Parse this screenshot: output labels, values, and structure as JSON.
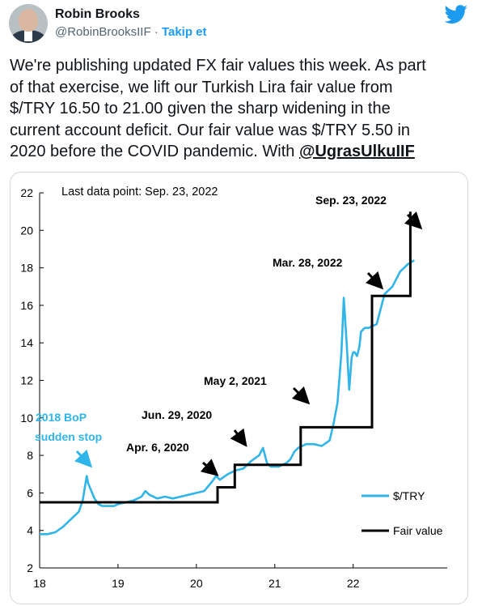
{
  "author": {
    "name": "Robin Brooks",
    "handle": "@RobinBrooksIIF",
    "separator": "·",
    "follow_label": "Takip et",
    "avatar_icon": "profile-photo",
    "platform_icon": "twitter-bird-icon"
  },
  "tweet": {
    "lines": [
      "We're publishing updated FX fair values this week. As part",
      "of that exercise, we lift our Turkish Lira fair value from",
      "$/TRY 16.50 to 21.00 given the sharp widening in the",
      "current account deficit. Our fair value was $/TRY 5.50 in",
      "2020 before the COVID pandemic. With "
    ],
    "mention": "@UgrasUlkuIIF"
  },
  "colors": {
    "link": "#1d9bf0",
    "series": "#2fb5ea",
    "fair": "#000000"
  },
  "chart_data": {
    "type": "line",
    "note": "Last data point: Sep. 23, 2022",
    "x_ticks": [
      "18",
      "19",
      "20",
      "21",
      "22"
    ],
    "y_ticks": [
      "2",
      "4",
      "6",
      "8",
      "10",
      "12",
      "14",
      "16",
      "18",
      "20",
      "22"
    ],
    "xlim": [
      2018.0,
      2023.2
    ],
    "ylim": [
      2,
      22
    ],
    "series": [
      {
        "name": "$/TRY",
        "x": [
          2018.0,
          2018.1,
          2018.2,
          2018.3,
          2018.4,
          2018.5,
          2018.55,
          2018.6,
          2018.62,
          2018.65,
          2018.7,
          2018.75,
          2018.8,
          2018.85,
          2018.9,
          2018.95,
          2019.0,
          2019.1,
          2019.2,
          2019.3,
          2019.35,
          2019.4,
          2019.5,
          2019.6,
          2019.7,
          2019.8,
          2019.9,
          2020.0,
          2020.1,
          2020.2,
          2020.25,
          2020.3,
          2020.4,
          2020.5,
          2020.6,
          2020.7,
          2020.8,
          2020.85,
          2020.9,
          2020.95,
          2021.0,
          2021.05,
          2021.1,
          2021.15,
          2021.2,
          2021.25,
          2021.3,
          2021.4,
          2021.5,
          2021.6,
          2021.7,
          2021.75,
          2021.8,
          2021.85,
          2021.88,
          2021.92,
          2021.95,
          2021.98,
          2022.0,
          2022.02,
          2022.05,
          2022.08,
          2022.1,
          2022.15,
          2022.2,
          2022.3,
          2022.4,
          2022.5,
          2022.6,
          2022.7,
          2022.78
        ],
        "y": [
          3.8,
          3.8,
          3.9,
          4.2,
          4.6,
          5.0,
          5.6,
          6.9,
          6.5,
          6.2,
          5.7,
          5.4,
          5.3,
          5.3,
          5.3,
          5.3,
          5.4,
          5.5,
          5.6,
          5.8,
          6.1,
          5.9,
          5.7,
          5.8,
          5.7,
          5.8,
          5.9,
          6.0,
          6.1,
          6.6,
          6.9,
          6.7,
          7.0,
          7.2,
          7.3,
          7.7,
          8.0,
          8.4,
          7.6,
          7.4,
          7.4,
          7.4,
          7.5,
          7.6,
          7.8,
          8.2,
          8.4,
          8.6,
          8.6,
          8.5,
          8.8,
          9.7,
          10.8,
          13.5,
          16.4,
          13.8,
          11.5,
          13.2,
          13.5,
          13.5,
          13.3,
          13.8,
          14.6,
          14.8,
          14.8,
          15.0,
          16.6,
          17.0,
          17.8,
          18.2,
          18.4
        ]
      },
      {
        "name": "Fair value",
        "x": [
          2018.0,
          2020.27,
          2020.27,
          2020.49,
          2020.49,
          2021.33,
          2021.33,
          2022.24,
          2022.24,
          2022.73,
          2022.73
        ],
        "y": [
          5.5,
          5.5,
          6.3,
          6.3,
          7.5,
          7.5,
          9.5,
          9.5,
          16.5,
          16.5,
          21.0
        ]
      }
    ],
    "annotations": [
      "2018 BoP sudden stop",
      "Apr. 6, 2020",
      "Jun. 29, 2020",
      "May 2, 2021",
      "Mar. 28, 2022",
      "Sep. 23, 2022"
    ],
    "legend": [
      "$/TRY",
      "Fair value"
    ],
    "legend_position": "bottom-right",
    "grid": false
  }
}
